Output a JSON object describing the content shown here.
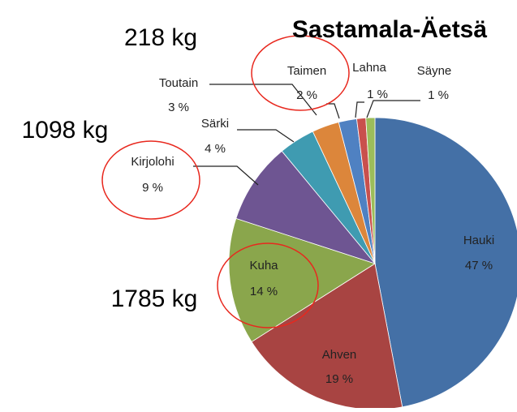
{
  "chart_data": {
    "type": "pie",
    "title": "Sastamala-Äetsä",
    "categories": [
      "Hauki",
      "Ahven",
      "Kuha",
      "Kirjolohi",
      "Särki",
      "Toutain",
      "Taimen",
      "Lahna",
      "Säyne"
    ],
    "values": [
      47,
      19,
      14,
      9,
      4,
      3,
      2,
      1,
      1
    ],
    "value_labels": [
      "47 %",
      "19 %",
      "14 %",
      "9 %",
      "4 %",
      "3 %",
      "2 %",
      "1 %",
      "1 %"
    ],
    "colors": [
      "#4470a6",
      "#a84442",
      "#8aa64c",
      "#6e5592",
      "#3f9bb1",
      "#dc863b",
      "#4f81c2",
      "#c9504d",
      "#9cbd5a"
    ],
    "annotations": [
      "218 kg",
      "1098 kg",
      "1785 kg"
    ]
  }
}
